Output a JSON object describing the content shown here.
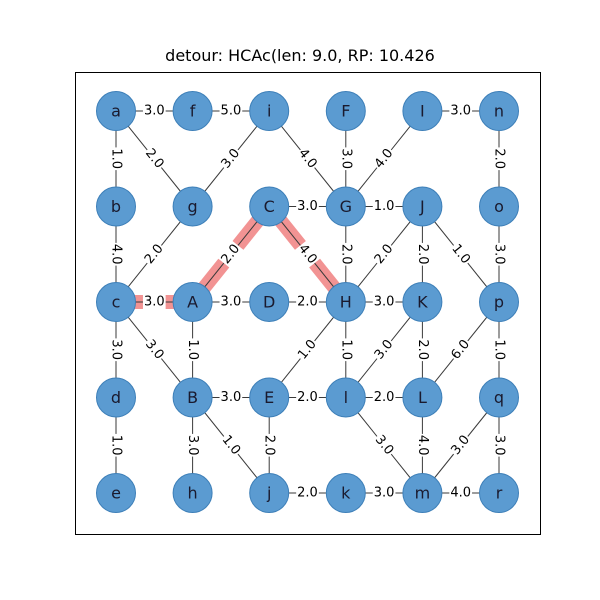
{
  "title": "detour: HCAc(len: 9.0, RP: 10.426",
  "colors": {
    "node_fill": "#5b9bd1",
    "node_stroke": "#3d7fb8",
    "edge": "#3a3a3a",
    "path_highlight": "#f08080"
  },
  "nodes": [
    {
      "id": "a",
      "col": 0,
      "row": 0
    },
    {
      "id": "f",
      "col": 1,
      "row": 0
    },
    {
      "id": "i",
      "col": 2,
      "row": 0
    },
    {
      "id": "F",
      "col": 3,
      "row": 0
    },
    {
      "id": "I",
      "col": 4,
      "row": 0
    },
    {
      "id": "n",
      "col": 5,
      "row": 0
    },
    {
      "id": "b",
      "col": 0,
      "row": 1
    },
    {
      "id": "g",
      "col": 1,
      "row": 1
    },
    {
      "id": "C",
      "col": 2,
      "row": 1
    },
    {
      "id": "G",
      "col": 3,
      "row": 1
    },
    {
      "id": "J",
      "col": 4,
      "row": 1
    },
    {
      "id": "o",
      "col": 5,
      "row": 1
    },
    {
      "id": "c",
      "col": 0,
      "row": 2
    },
    {
      "id": "A",
      "col": 1,
      "row": 2
    },
    {
      "id": "D",
      "col": 2,
      "row": 2
    },
    {
      "id": "H",
      "col": 3,
      "row": 2
    },
    {
      "id": "K",
      "col": 4,
      "row": 2
    },
    {
      "id": "p",
      "col": 5,
      "row": 2
    },
    {
      "id": "d",
      "col": 0,
      "row": 3
    },
    {
      "id": "B",
      "col": 1,
      "row": 3
    },
    {
      "id": "E",
      "col": 2,
      "row": 3
    },
    {
      "id": "l",
      "col": 3,
      "row": 3
    },
    {
      "id": "L",
      "col": 4,
      "row": 3
    },
    {
      "id": "q",
      "col": 5,
      "row": 3
    },
    {
      "id": "e",
      "col": 0,
      "row": 4
    },
    {
      "id": "h",
      "col": 1,
      "row": 4
    },
    {
      "id": "j",
      "col": 2,
      "row": 4
    },
    {
      "id": "k",
      "col": 3,
      "row": 4
    },
    {
      "id": "m",
      "col": 4,
      "row": 4
    },
    {
      "id": "r",
      "col": 5,
      "row": 4
    }
  ],
  "edges": [
    {
      "from": "a",
      "to": "f",
      "label": "3.0"
    },
    {
      "from": "f",
      "to": "i",
      "label": "5.0"
    },
    {
      "from": "I",
      "to": "n",
      "label": "3.0"
    },
    {
      "from": "a",
      "to": "b",
      "label": "1.0"
    },
    {
      "from": "a",
      "to": "g",
      "label": "2.0"
    },
    {
      "from": "i",
      "to": "g",
      "label": "3.0"
    },
    {
      "from": "i",
      "to": "G",
      "label": "4.0"
    },
    {
      "from": "F",
      "to": "G",
      "label": "3.0"
    },
    {
      "from": "I",
      "to": "G",
      "label": "4.0"
    },
    {
      "from": "n",
      "to": "o",
      "label": "2.0"
    },
    {
      "from": "C",
      "to": "G",
      "label": "3.0"
    },
    {
      "from": "G",
      "to": "J",
      "label": "1.0"
    },
    {
      "from": "b",
      "to": "c",
      "label": "4.0"
    },
    {
      "from": "g",
      "to": "c",
      "label": "2.0"
    },
    {
      "from": "C",
      "to": "A",
      "label": "2.0"
    },
    {
      "from": "C",
      "to": "H",
      "label": "4.0"
    },
    {
      "from": "G",
      "to": "H",
      "label": "2.0"
    },
    {
      "from": "J",
      "to": "H",
      "label": "2.0"
    },
    {
      "from": "J",
      "to": "K",
      "label": "2.0"
    },
    {
      "from": "J",
      "to": "p",
      "label": "1.0"
    },
    {
      "from": "o",
      "to": "p",
      "label": "3.0"
    },
    {
      "from": "c",
      "to": "A",
      "label": "3.0"
    },
    {
      "from": "A",
      "to": "D",
      "label": "3.0"
    },
    {
      "from": "D",
      "to": "H",
      "label": "2.0"
    },
    {
      "from": "H",
      "to": "K",
      "label": "3.0"
    },
    {
      "from": "c",
      "to": "d",
      "label": "3.0"
    },
    {
      "from": "c",
      "to": "B",
      "label": "3.0"
    },
    {
      "from": "A",
      "to": "B",
      "label": "1.0"
    },
    {
      "from": "H",
      "to": "E",
      "label": "1.0"
    },
    {
      "from": "H",
      "to": "l",
      "label": "1.0"
    },
    {
      "from": "K",
      "to": "l",
      "label": "3.0"
    },
    {
      "from": "K",
      "to": "L",
      "label": "2.0"
    },
    {
      "from": "p",
      "to": "L",
      "label": "6.0"
    },
    {
      "from": "p",
      "to": "q",
      "label": "1.0"
    },
    {
      "from": "B",
      "to": "E",
      "label": "3.0"
    },
    {
      "from": "E",
      "to": "l",
      "label": "2.0"
    },
    {
      "from": "l",
      "to": "L",
      "label": "2.0"
    },
    {
      "from": "d",
      "to": "e",
      "label": "1.0"
    },
    {
      "from": "B",
      "to": "h",
      "label": "3.0"
    },
    {
      "from": "B",
      "to": "j",
      "label": "1.0"
    },
    {
      "from": "E",
      "to": "j",
      "label": "2.0"
    },
    {
      "from": "l",
      "to": "m",
      "label": "3.0"
    },
    {
      "from": "L",
      "to": "m",
      "label": "4.0"
    },
    {
      "from": "q",
      "to": "m",
      "label": "3.0"
    },
    {
      "from": "q",
      "to": "r",
      "label": "3.0"
    },
    {
      "from": "j",
      "to": "k",
      "label": "2.0"
    },
    {
      "from": "k",
      "to": "m",
      "label": "3.0"
    },
    {
      "from": "m",
      "to": "r",
      "label": "4.0"
    }
  ],
  "highlight_path": [
    "H",
    "C",
    "A",
    "c"
  ]
}
